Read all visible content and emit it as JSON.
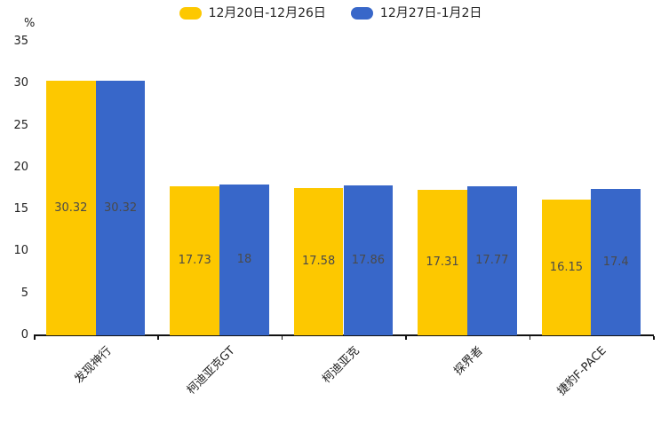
{
  "chart_data": {
    "type": "bar",
    "title": "",
    "unit_label": "%",
    "categories": [
      "发现神行",
      "柯迪亚克GT",
      "柯迪亚克",
      "探界者",
      "捷豹F-PACE"
    ],
    "series": [
      {
        "name": "12月20日-12月26日",
        "color": "#FDC800",
        "values": [
          30.32,
          17.73,
          17.58,
          17.31,
          16.15
        ]
      },
      {
        "name": "12月27日-1月2日",
        "color": "#3867C9",
        "values": [
          30.32,
          18,
          17.86,
          17.77,
          17.4
        ]
      }
    ],
    "ylim": [
      0,
      35
    ],
    "y_ticks": [
      0,
      5,
      10,
      15,
      20,
      25,
      30,
      35
    ],
    "ylabel": "%",
    "xlabel": "",
    "grid": false,
    "legend_position": "top",
    "value_labels": "inside-center",
    "x_label_rotation_deg": 45,
    "colors": {
      "axis": "#111111",
      "tick_text": "#222222",
      "value_text": "#4a4a4a",
      "background": "#ffffff"
    }
  }
}
